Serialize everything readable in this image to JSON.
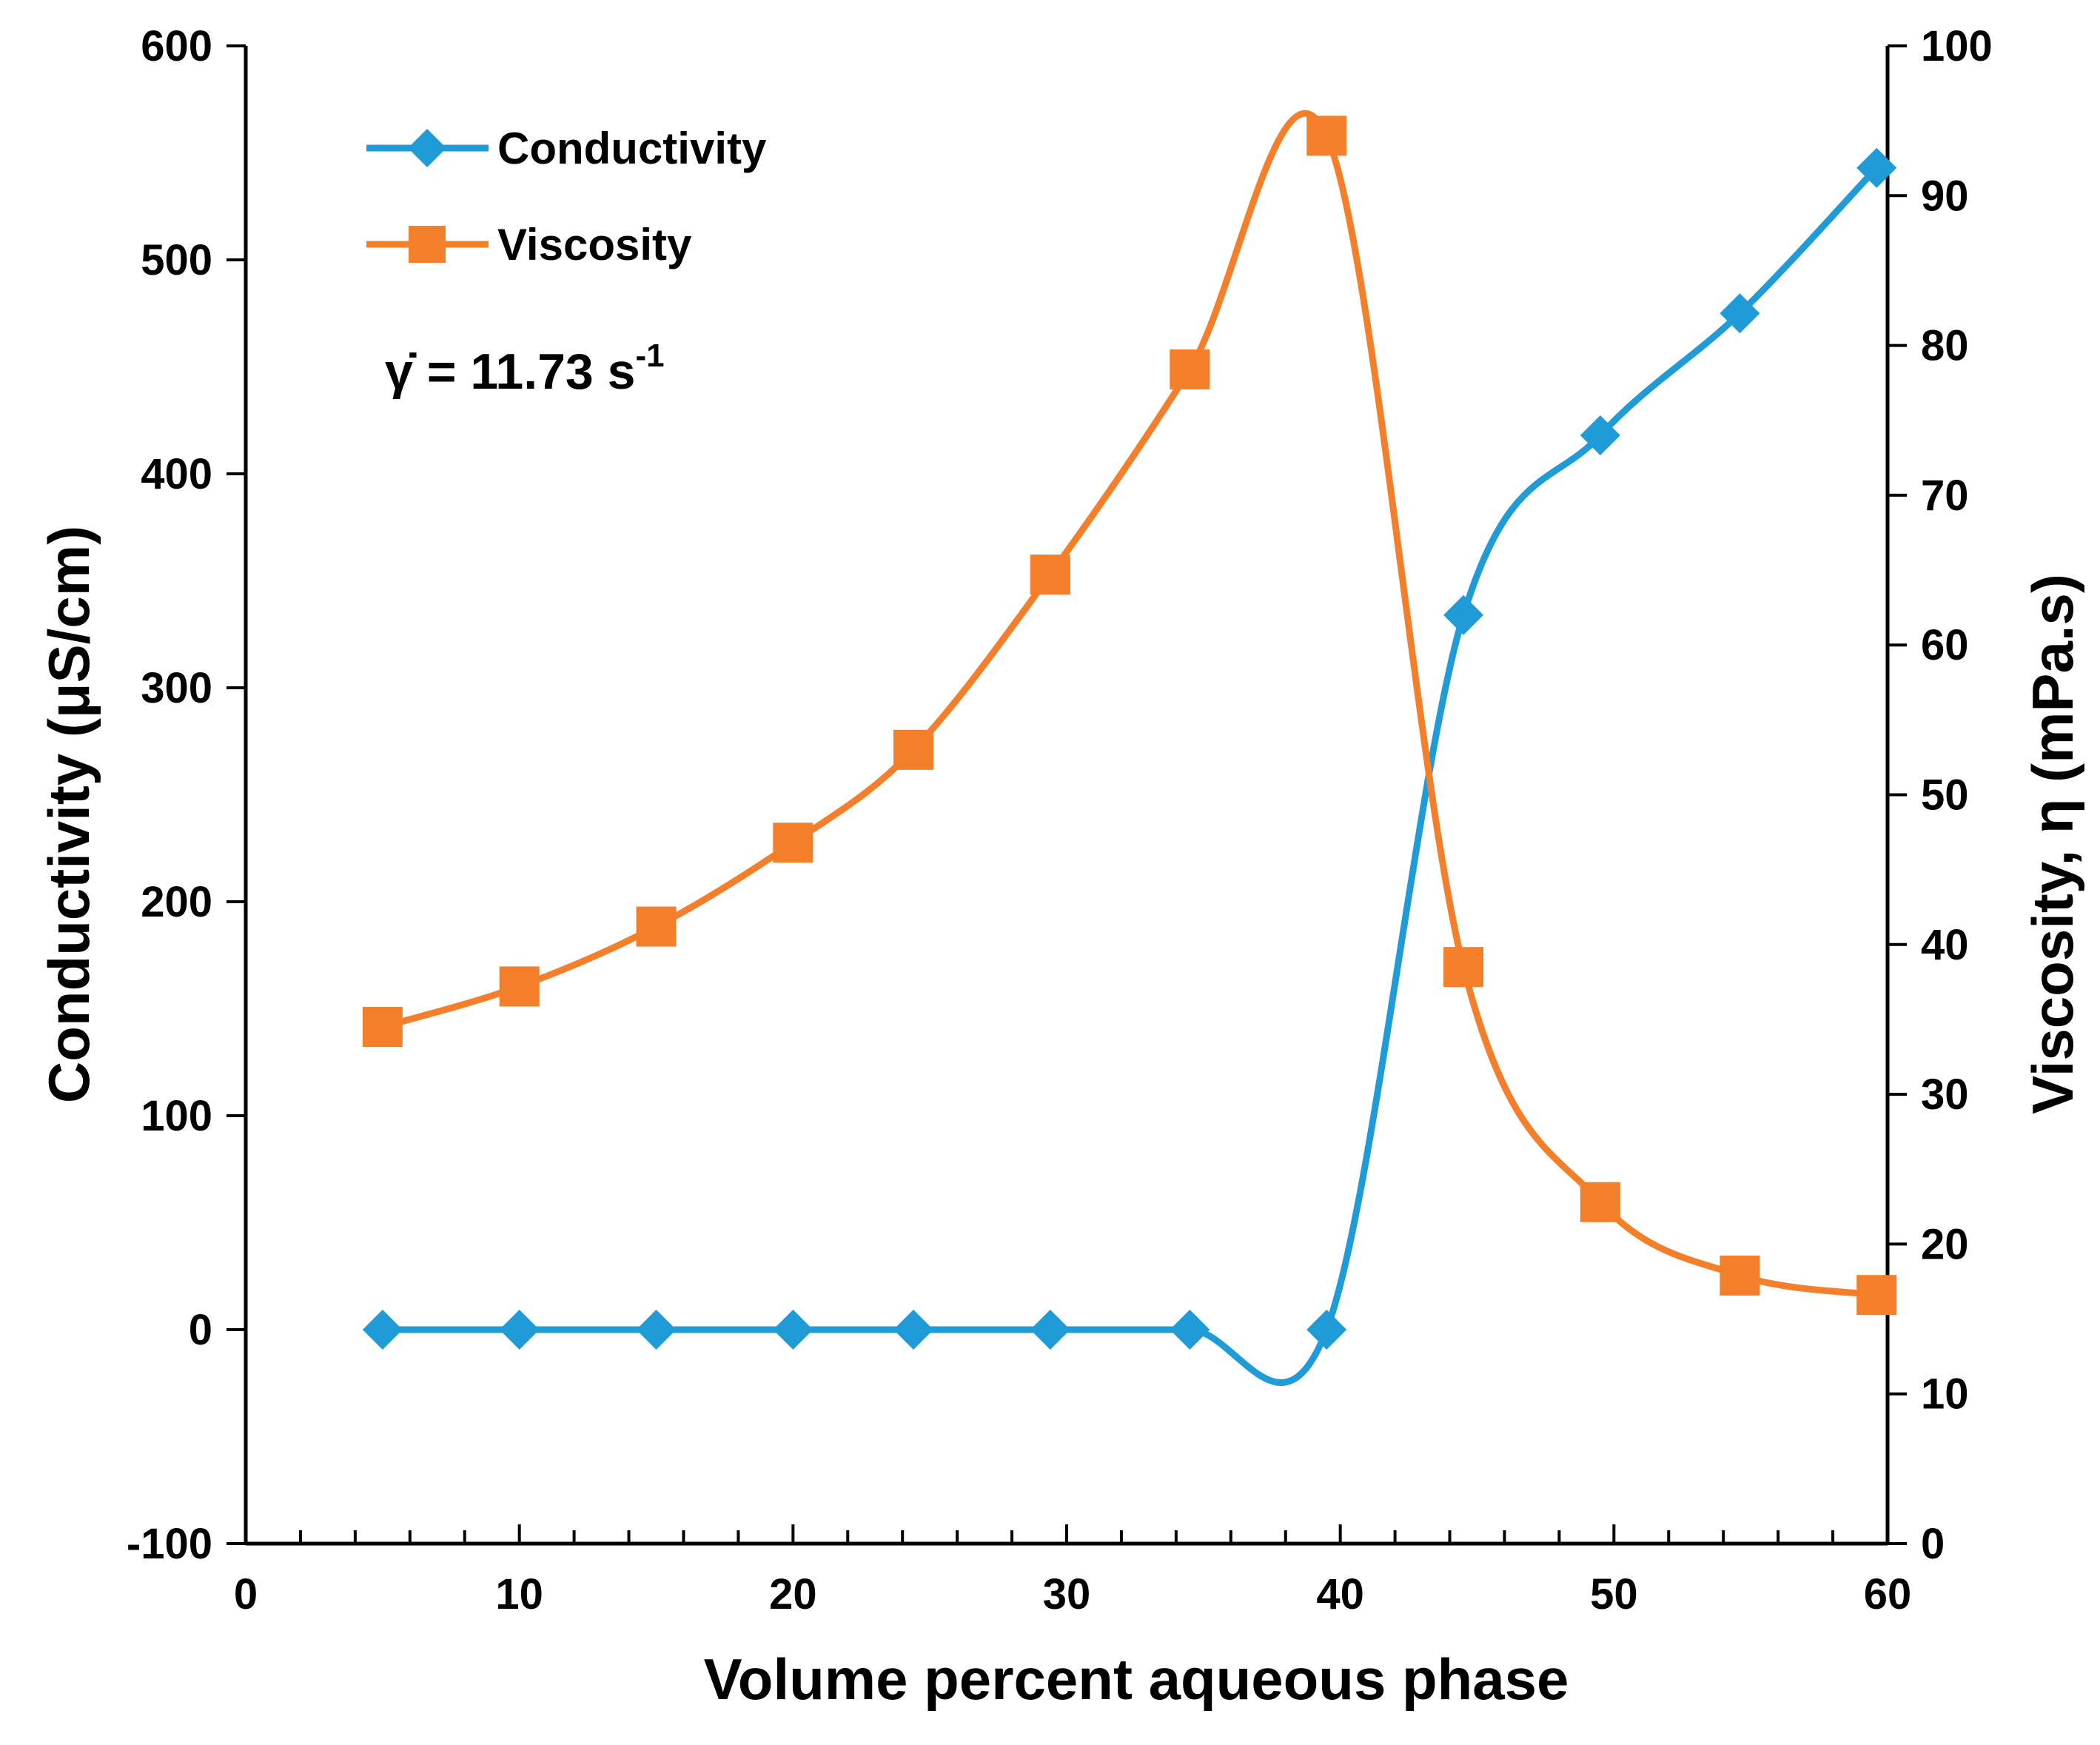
{
  "chart_data": {
    "type": "line",
    "x": [
      5,
      10,
      15,
      20,
      24.4,
      29.4,
      34.5,
      39.5,
      44.5,
      49.5,
      54.6,
      59.6
    ],
    "series": [
      {
        "name": "Conductivity",
        "axis": "left",
        "color": "#1f9bd7",
        "marker": "diamond",
        "values": [
          0,
          0,
          0,
          0,
          0,
          0,
          0,
          0,
          334,
          418,
          475,
          543
        ]
      },
      {
        "name": "Viscosity",
        "axis": "right",
        "color": "#f47f2a",
        "marker": "square",
        "values": [
          34.5,
          37.2,
          41.2,
          46.8,
          53.0,
          64.7,
          78.4,
          94.0,
          38.5,
          22.8,
          17.9,
          16.6
        ]
      }
    ],
    "xlabel": "Volume percent aqueous phase",
    "ylabel_left": "Conductivity (μS/cm)",
    "ylabel_right": "Viscosity, η (mPa.s)",
    "xlim": [
      0,
      60
    ],
    "ylim_left": [
      -100,
      600
    ],
    "ylim_right": [
      0,
      100
    ],
    "x_ticks": [
      "0",
      "10",
      "20",
      "30",
      "40",
      "50",
      "60"
    ],
    "y_left_ticks": [
      "-100",
      "0",
      "100",
      "200",
      "300",
      "400",
      "500",
      "600"
    ],
    "y_right_ticks": [
      "0",
      "10",
      "20",
      "30",
      "40",
      "50",
      "60",
      "70",
      "80",
      "90",
      "100"
    ],
    "annotation": {
      "base": "γ̇ = 11.73 s",
      "sup": "-1"
    },
    "legend_position": "top-left",
    "grid": false
  }
}
